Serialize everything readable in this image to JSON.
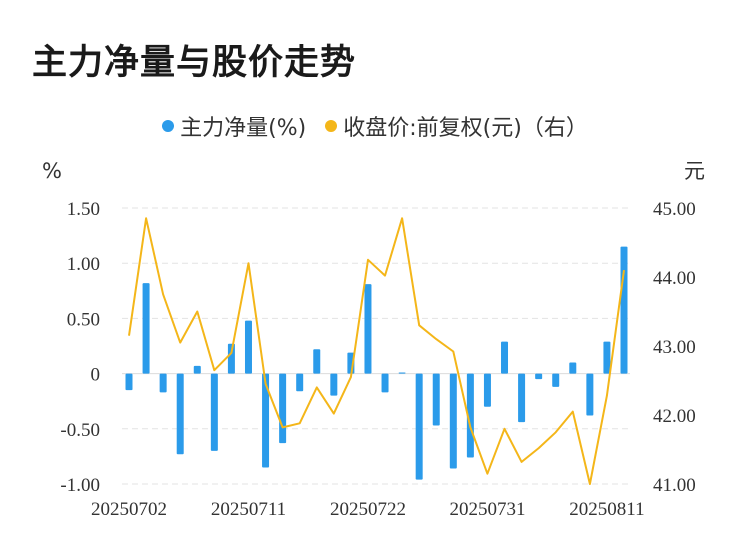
{
  "title": "主力净量与股价走势",
  "colors": {
    "bar": "#2b9bea",
    "line": "#f4b619",
    "grid": "#e3e3e3"
  },
  "legend": {
    "bar_label": "主力净量(%)",
    "line_label": "收盘价:前复权(元)（右）"
  },
  "chart_data": {
    "type": "bar",
    "title": "主力净量与股价走势",
    "left_unit": "%",
    "right_unit": "元",
    "ylim_left": [
      -1.0,
      1.5
    ],
    "ylim_right": [
      41.0,
      45.0
    ],
    "left_ticks": [
      "1.50",
      "1.00",
      "0.50",
      "0",
      "-0.50",
      "-1.00"
    ],
    "right_ticks": [
      "45.00",
      "44.00",
      "43.00",
      "42.00",
      "41.00"
    ],
    "x_tick_labels": [
      "20250702",
      "20250711",
      "20250722",
      "20250731",
      "20250811"
    ],
    "series": [
      {
        "name": "主力净量(%)",
        "type": "bar",
        "axis": "left",
        "values": [
          -0.15,
          0.82,
          -0.17,
          -0.73,
          0.07,
          -0.7,
          0.27,
          0.48,
          -0.85,
          -0.63,
          -0.16,
          0.22,
          -0.2,
          0.19,
          0.81,
          -0.17,
          0.01,
          -0.96,
          -0.47,
          -0.86,
          -0.76,
          -0.3,
          0.29,
          -0.44,
          -0.05,
          -0.12,
          0.1,
          -0.38,
          0.29,
          1.15
        ]
      },
      {
        "name": "收盘价:前复权(元)（右）",
        "type": "line",
        "axis": "right",
        "values": [
          43.15,
          44.85,
          43.75,
          43.05,
          43.5,
          42.65,
          42.9,
          44.2,
          42.45,
          41.82,
          41.88,
          42.4,
          42.02,
          42.55,
          44.25,
          44.02,
          44.85,
          43.3,
          43.1,
          42.92,
          41.82,
          41.15,
          41.8,
          41.32,
          41.52,
          41.75,
          42.05,
          41.0,
          42.28,
          44.1
        ]
      }
    ],
    "grid": true,
    "legend_position": "top-center"
  }
}
